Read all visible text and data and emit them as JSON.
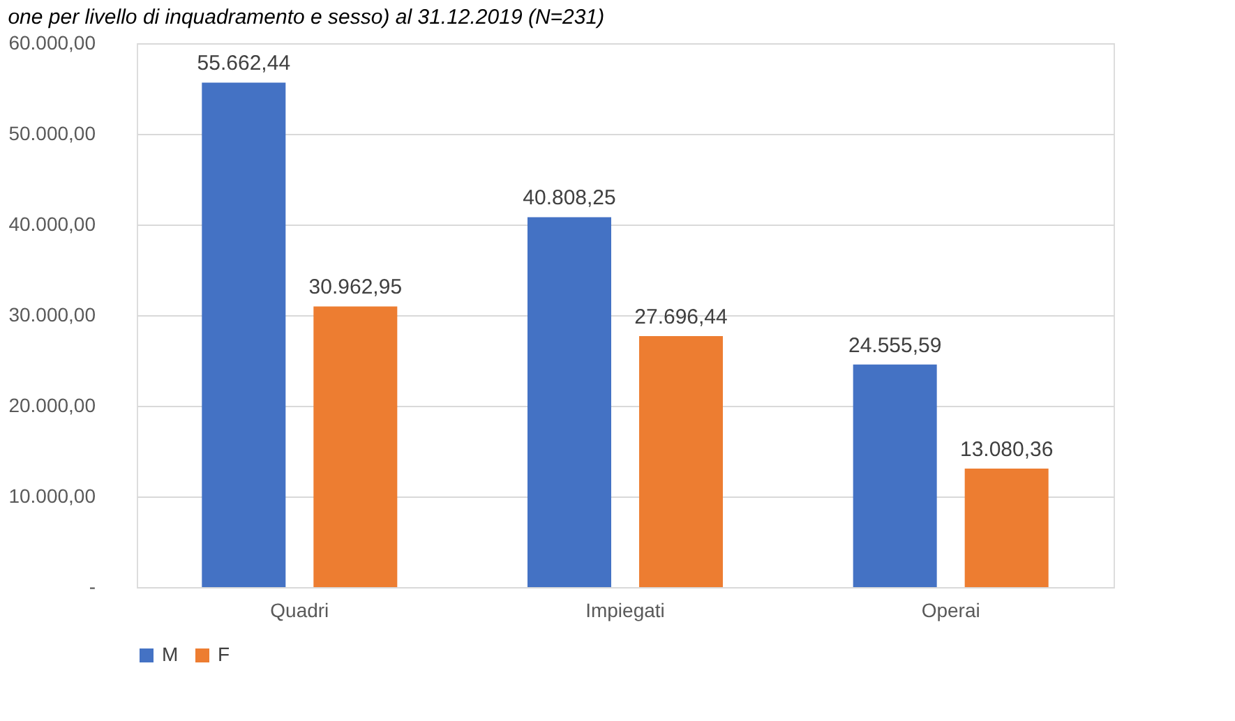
{
  "chart_data": {
    "type": "bar",
    "title": "one per livello di inquadramento e sesso) al 31.12.2019 (N=231)",
    "categories": [
      "Quadri",
      "Impiegati",
      "Operai"
    ],
    "series": [
      {
        "name": "M",
        "color": "#4472c4",
        "values": [
          55662.44,
          40808.25,
          24555.59
        ],
        "value_labels": [
          "55.662,44",
          "40.808,25",
          "24.555,59"
        ]
      },
      {
        "name": "F",
        "color": "#ed7d31",
        "values": [
          30962.95,
          27696.44,
          13080.36
        ],
        "value_labels": [
          "30.962,95",
          "27.696,44",
          "13.080,36"
        ]
      }
    ],
    "ylim": [
      0,
      60000
    ],
    "yticks": [
      {
        "value": 0,
        "label": "-"
      },
      {
        "value": 10000,
        "label": "10.000,00"
      },
      {
        "value": 20000,
        "label": "20.000,00"
      },
      {
        "value": 30000,
        "label": "30.000,00"
      },
      {
        "value": 40000,
        "label": "40.000,00"
      },
      {
        "value": 50000,
        "label": "50.000,00"
      },
      {
        "value": 60000,
        "label": "60.000,00"
      }
    ],
    "grid": "y",
    "legend": "bottom"
  }
}
